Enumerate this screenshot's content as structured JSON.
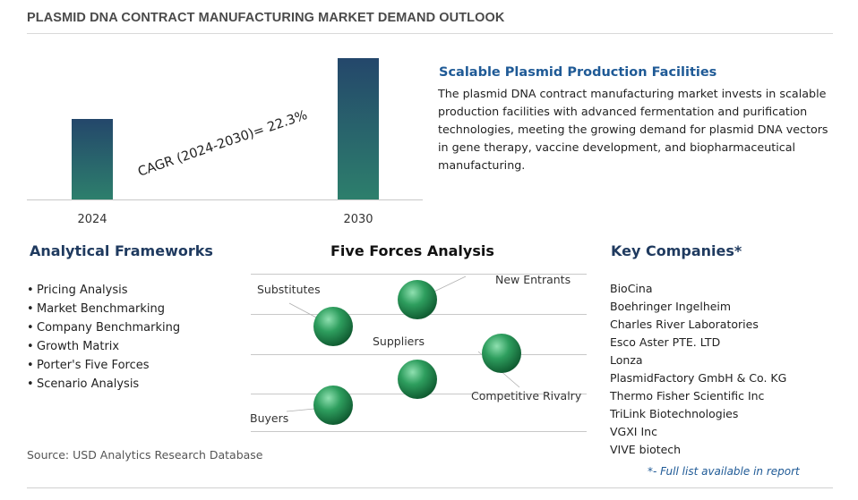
{
  "header": {
    "title": "PLASMID DNA CONTRACT MANUFACTURING MARKET DEMAND OUTLOOK"
  },
  "chart_data": {
    "type": "bar",
    "categories": [
      "2024",
      "2030"
    ],
    "values": [
      90,
      158
    ],
    "annotation": "CAGR (2024-2030)=  22.3%",
    "colors": {
      "bar_top": "#24476b",
      "bar_bottom": "#2d7f6c",
      "baseline": "#c8c8c8"
    }
  },
  "highlight": {
    "title": "Scalable Plasmid Production Facilities",
    "body": "The plasmid DNA contract manufacturing market invests in scalable production facilities with advanced fermentation and purification technologies, meeting the growing demand for plasmid DNA vectors in gene therapy, vaccine development, and biopharmaceutical manufacturing."
  },
  "frameworks": {
    "heading": "Analytical Frameworks",
    "items": [
      "Pricing Analysis",
      "Market Benchmarking",
      "Company Benchmarking",
      "Growth Matrix",
      "Porter's Five Forces",
      "Scenario Analysis"
    ]
  },
  "five_forces": {
    "heading": "Five Forces Analysis",
    "forces": [
      "Substitutes",
      "New Entrants",
      "Suppliers",
      "Competitive Rivalry",
      "Buyers"
    ],
    "colors": {
      "sphere_light": "#8fe0b0",
      "sphere_mid": "#2e9e5e",
      "sphere_dark": "#0f5a30",
      "lines": "#c8c8c8"
    }
  },
  "companies": {
    "heading": "Key Companies*",
    "items": [
      "BioCina",
      "Boehringer Ingelheim",
      "Charles River Laboratories",
      "Esco Aster PTE. LTD",
      "Lonza",
      "PlasmidFactory GmbH & Co. KG",
      "Thermo Fisher Scientific Inc",
      "TriLink Biotechnologies",
      "VGXI Inc",
      "VIVE biotech"
    ],
    "note": "*- Full list available in report"
  },
  "footer": {
    "source": "Source: USD Analytics Research Database"
  }
}
